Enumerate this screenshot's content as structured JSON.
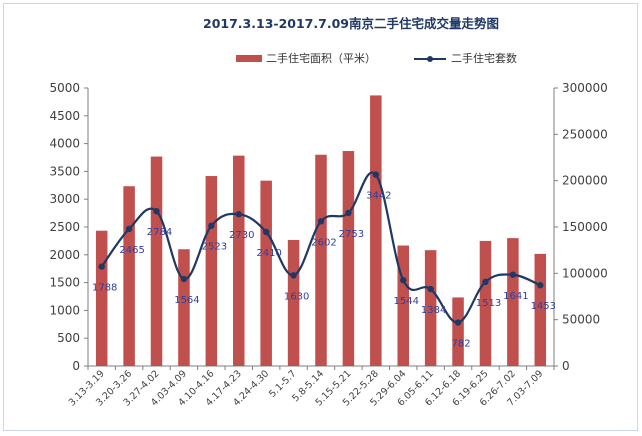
{
  "chart_data": {
    "type": "bar",
    "title": "2017.3.13-2017.7.09南京二手住宅成交量走势图",
    "categories": [
      "3.13-3.19",
      "3.20-3.26",
      "3.27-4.02",
      "4.03-4.09",
      "4.10-4.16",
      "4.17-4.23",
      "4.24-4.30",
      "5.1-5.7",
      "5.8-5.14",
      "5.15-5.21",
      "5.22-5.28",
      "5.29-6.04",
      "6.05-6.11",
      "6.12-6.18",
      "6.19-6.25",
      "6.26-7.02",
      "7.03-7.09"
    ],
    "series": [
      {
        "name": "二手住宅面积（平米）",
        "type": "bar",
        "axis": "right",
        "color": "#c0504d",
        "values": [
          146000,
          194000,
          226000,
          126000,
          205000,
          227000,
          200000,
          136000,
          228000,
          232000,
          292000,
          130000,
          125000,
          74000,
          135000,
          138000,
          121000
        ]
      },
      {
        "name": "二手住宅套数",
        "type": "line",
        "axis": "left",
        "color": "#1f3864",
        "values": [
          1788,
          2465,
          2784,
          1564,
          2523,
          2730,
          2410,
          1630,
          2602,
          2753,
          3442,
          1544,
          1384,
          782,
          1513,
          1641,
          1453
        ],
        "labels": [
          "1788",
          "2465",
          "2784",
          "1564",
          "2523",
          "2730",
          "2410",
          "1630",
          "2602",
          "2753",
          "3442",
          "1544",
          "1384",
          "782",
          "1513",
          "1641",
          "1453"
        ]
      }
    ],
    "left_axis": {
      "ylim": [
        0,
        5000
      ],
      "ticks": [
        "0",
        "500",
        "1000",
        "1500",
        "2000",
        "2500",
        "3000",
        "3500",
        "4000",
        "4500",
        "5000"
      ]
    },
    "right_axis": {
      "ylim": [
        0,
        300000
      ],
      "ticks": [
        "0",
        "50000",
        "100000",
        "150000",
        "200000",
        "250000",
        "300000"
      ]
    },
    "grid": false,
    "legend_position": "top"
  }
}
